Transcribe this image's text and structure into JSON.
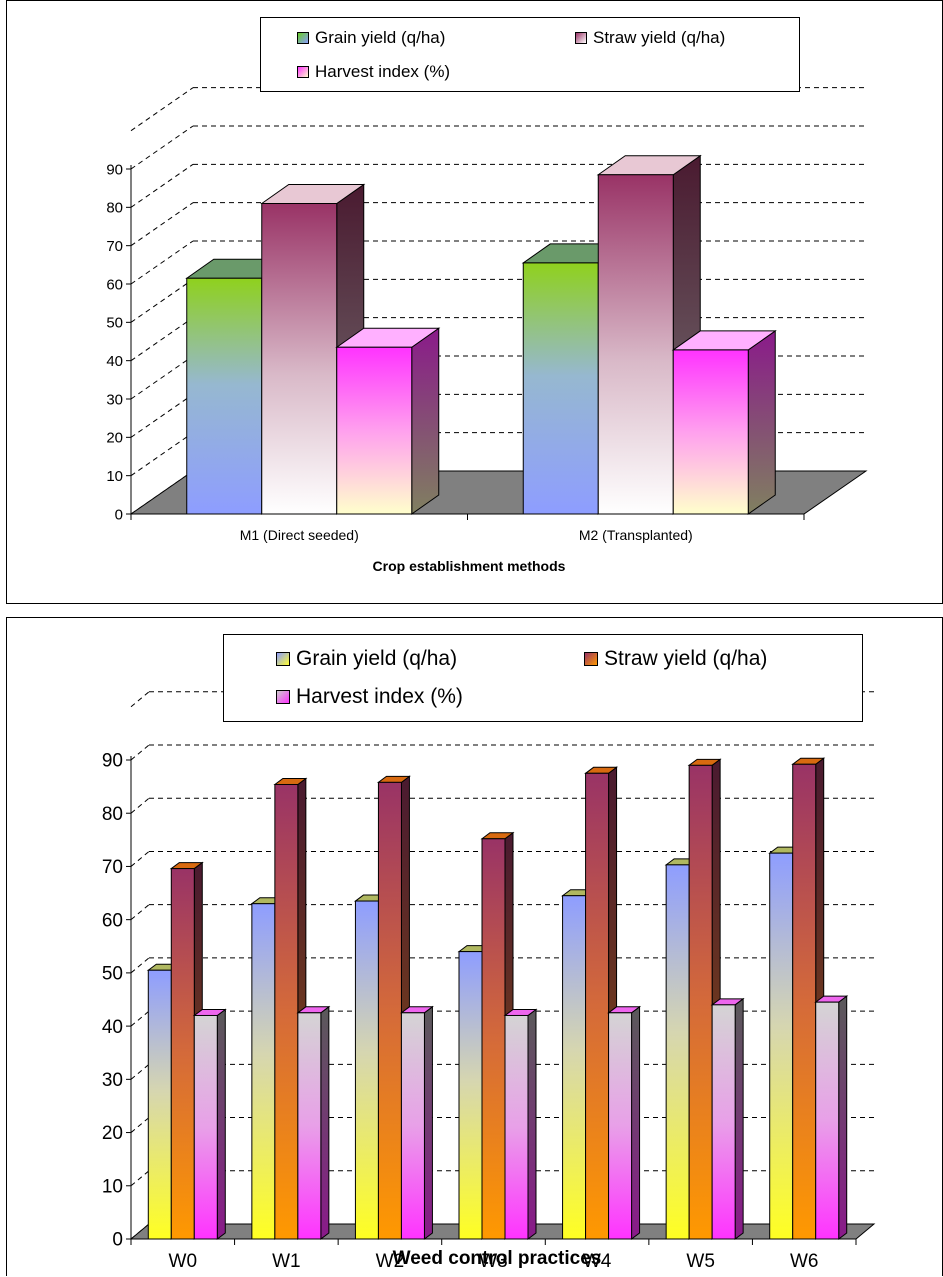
{
  "chart_data": [
    {
      "type": "bar",
      "variant": "3d-clustered-column",
      "title": "",
      "xlabel": "Crop establishment methods",
      "ylabel": "",
      "ylim": [
        0,
        90
      ],
      "yticks": [
        "0",
        "10",
        "20",
        "30",
        "40",
        "50",
        "60",
        "70",
        "80",
        "90"
      ],
      "categories": [
        "M1 (Direct seeded)",
        "M2 (Transplanted)"
      ],
      "series": [
        {
          "name": "Grain yield (q/ha)",
          "values": [
            61.5,
            65.5
          ]
        },
        {
          "name": "Straw yield (q/ha)",
          "values": [
            81,
            88.5
          ]
        },
        {
          "name": "Harvest index (%)",
          "values": [
            43.5,
            42.8
          ]
        }
      ],
      "grid": true,
      "legend_position": "top"
    },
    {
      "type": "bar",
      "variant": "3d-clustered-column",
      "title": "",
      "xlabel": "Weed control practices",
      "ylabel": "",
      "ylim": [
        0,
        90
      ],
      "yticks": [
        "0",
        "10",
        "20",
        "30",
        "40",
        "50",
        "60",
        "70",
        "80",
        "90"
      ],
      "categories": [
        "W0",
        "W1",
        "W2",
        "W3",
        "W4",
        "W5",
        "W6"
      ],
      "series": [
        {
          "name": "Grain yield (q/ha)",
          "values": [
            50.5,
            63,
            63.5,
            54,
            64.5,
            70.3,
            72.5
          ]
        },
        {
          "name": "Straw yield (q/ha)",
          "values": [
            69.6,
            85.4,
            85.8,
            75.2,
            87.5,
            89,
            89.2
          ]
        },
        {
          "name": "Harvest index (%)",
          "values": [
            42,
            42.5,
            42.5,
            42,
            42.5,
            44,
            44.5
          ]
        }
      ],
      "grid": true,
      "legend_position": "top"
    }
  ]
}
